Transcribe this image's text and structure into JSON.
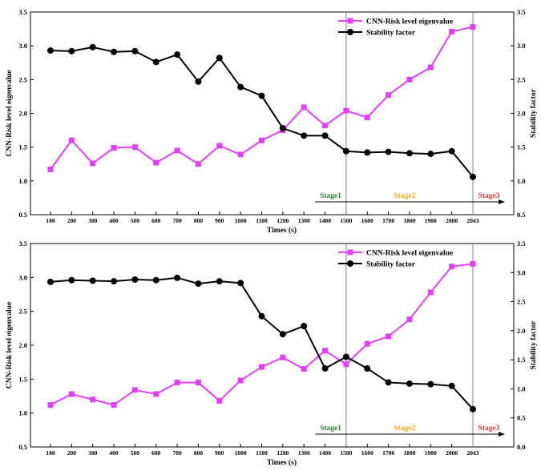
{
  "chart_data": [
    {
      "type": "line",
      "panel": "top",
      "categories": [
        "100",
        "200",
        "300",
        "400",
        "500",
        "600",
        "700",
        "800",
        "900",
        "1000",
        "1100",
        "1200",
        "1300",
        "1400",
        "1500",
        "1600",
        "1700",
        "1800",
        "1900",
        "2000",
        "2043"
      ],
      "series": [
        {
          "name": "CNN-Risk level eigenvalue",
          "axis": "left",
          "color": "#e040fb",
          "marker": "square",
          "values": [
            1.17,
            1.6,
            1.26,
            1.49,
            1.5,
            1.27,
            1.45,
            1.25,
            1.52,
            1.39,
            1.6,
            1.75,
            2.09,
            1.82,
            2.04,
            1.94,
            2.27,
            2.5,
            2.68,
            3.21,
            3.28
          ]
        },
        {
          "name": "Stability factor",
          "axis": "right",
          "color": "#000000",
          "marker": "circle",
          "values": [
            2.93,
            2.92,
            2.98,
            2.91,
            2.92,
            2.76,
            2.87,
            2.47,
            2.82,
            2.39,
            2.26,
            1.78,
            1.67,
            1.67,
            1.44,
            1.42,
            1.43,
            1.41,
            1.4,
            1.44,
            1.06
          ]
        }
      ],
      "xlabel": "Times (s)",
      "ylabel": "CNN-Risk level eigenvalue",
      "y2label": "Stability factor",
      "ylim": [
        0.5,
        3.5
      ],
      "y2lim": [
        0.5,
        3.5
      ],
      "yticks": [
        "0.5",
        "1.0",
        "1.5",
        "2.0",
        "2.5",
        "3.0",
        "3.5"
      ],
      "y2ticks": [
        "0.5",
        "1.0",
        "1.5",
        "2.0",
        "2.5",
        "3.0",
        "3.5"
      ],
      "vlines_at": [
        "1500",
        "2043"
      ],
      "stages": [
        {
          "label": "Stage1",
          "color": "#2e7d32"
        },
        {
          "label": "Stage2",
          "color": "#f5a623"
        },
        {
          "label": "Stage3",
          "color": "#e53935"
        }
      ],
      "legend_position": "top-right"
    },
    {
      "type": "line",
      "panel": "bottom",
      "categories": [
        "100",
        "200",
        "300",
        "400",
        "500",
        "600",
        "700",
        "800",
        "900",
        "1000",
        "1100",
        "1200",
        "1300",
        "1400",
        "1500",
        "1600",
        "1700",
        "1800",
        "1900",
        "2000",
        "2043"
      ],
      "series": [
        {
          "name": "CNN-Risk level eigenvalue",
          "axis": "left",
          "color": "#e040fb",
          "marker": "square",
          "values": [
            1.12,
            1.28,
            1.2,
            1.12,
            1.34,
            1.28,
            1.45,
            1.45,
            1.18,
            1.48,
            1.68,
            1.82,
            1.65,
            1.92,
            1.72,
            2.02,
            2.13,
            2.38,
            2.78,
            3.16,
            3.2
          ]
        },
        {
          "name": "Stability factor",
          "axis": "right",
          "color": "#000000",
          "marker": "circle",
          "values": [
            2.84,
            2.87,
            2.86,
            2.85,
            2.88,
            2.87,
            2.91,
            2.81,
            2.85,
            2.82,
            2.25,
            1.94,
            2.08,
            1.35,
            1.55,
            1.35,
            1.11,
            1.09,
            1.08,
            1.05,
            0.65
          ]
        }
      ],
      "xlabel": "Times (s)",
      "ylabel": "CNN-Risk level eigenvalue",
      "y2label": "Stability factor",
      "ylim": [
        0.5,
        3.5
      ],
      "y2lim": [
        0.0,
        3.5
      ],
      "yticks": [
        "0.5",
        "1.0",
        "1.5",
        "2.0",
        "2.5",
        "3.0",
        "3.5"
      ],
      "y2ticks": [
        "0.0",
        "0.5",
        "1.0",
        "1.5",
        "2.0",
        "2.5",
        "3.0",
        "3.5"
      ],
      "vlines_at": [
        "1500",
        "2043"
      ],
      "stages": [
        {
          "label": "Stage1",
          "color": "#2e7d32"
        },
        {
          "label": "Stage2",
          "color": "#f5a623"
        },
        {
          "label": "Stage3",
          "color": "#e53935"
        }
      ],
      "legend_position": "top-right"
    }
  ]
}
